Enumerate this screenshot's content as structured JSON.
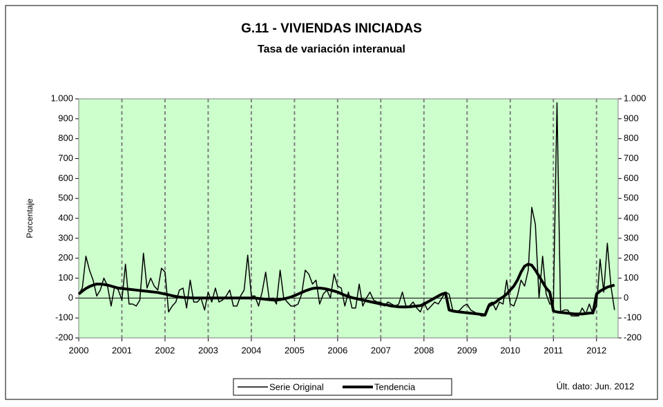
{
  "chart_data": {
    "type": "line",
    "title": "G.11 - VIVIENDAS INICIADAS",
    "subtitle": "Tasa de variación interanual",
    "y_label": "Porcentaje",
    "annotation": "Últ. dato: Jun. 2012",
    "background": "#ccffcc",
    "grid": true,
    "legend": "bottom",
    "xlim": [
      2000,
      2012.5
    ],
    "xticks": [
      2000,
      2001,
      2002,
      2003,
      2004,
      2005,
      2006,
      2007,
      2008,
      2009,
      2010,
      2011,
      2012
    ],
    "ylim": [
      -200,
      1000
    ],
    "yticks": [
      -200,
      -100,
      0,
      100,
      200,
      300,
      400,
      500,
      600,
      700,
      800,
      900,
      {
        "value": 1000,
        "label": "1.000"
      }
    ],
    "y2lim": [
      -200,
      1000
    ],
    "y2ticks": [
      -200,
      -100,
      0,
      100,
      200,
      300,
      400,
      500,
      600,
      700,
      800,
      900,
      {
        "value": 1000,
        "label": "1.000"
      }
    ],
    "x": [
      2000,
      2000.083,
      2000.167,
      2000.25,
      2000.333,
      2000.417,
      2000.5,
      2000.583,
      2000.667,
      2000.75,
      2000.833,
      2000.917,
      2001,
      2001.083,
      2001.167,
      2001.25,
      2001.333,
      2001.417,
      2001.5,
      2001.583,
      2001.667,
      2001.75,
      2001.833,
      2001.917,
      2002,
      2002.083,
      2002.167,
      2002.25,
      2002.333,
      2002.417,
      2002.5,
      2002.583,
      2002.667,
      2002.75,
      2002.833,
      2002.917,
      2003,
      2003.083,
      2003.167,
      2003.25,
      2003.333,
      2003.417,
      2003.5,
      2003.583,
      2003.667,
      2003.75,
      2003.833,
      2003.917,
      2004,
      2004.083,
      2004.167,
      2004.25,
      2004.333,
      2004.417,
      2004.5,
      2004.583,
      2004.667,
      2004.75,
      2004.833,
      2004.917,
      2005,
      2005.083,
      2005.167,
      2005.25,
      2005.333,
      2005.417,
      2005.5,
      2005.583,
      2005.667,
      2005.75,
      2005.833,
      2005.917,
      2006,
      2006.083,
      2006.167,
      2006.25,
      2006.333,
      2006.417,
      2006.5,
      2006.583,
      2006.667,
      2006.75,
      2006.833,
      2006.917,
      2007,
      2007.083,
      2007.167,
      2007.25,
      2007.333,
      2007.417,
      2007.5,
      2007.583,
      2007.667,
      2007.75,
      2007.833,
      2007.917,
      2008,
      2008.083,
      2008.167,
      2008.25,
      2008.333,
      2008.417,
      2008.5,
      2008.583,
      2008.667,
      2008.75,
      2008.833,
      2008.917,
      2009,
      2009.083,
      2009.167,
      2009.25,
      2009.333,
      2009.417,
      2009.5,
      2009.583,
      2009.667,
      2009.75,
      2009.833,
      2009.917,
      2010,
      2010.083,
      2010.167,
      2010.25,
      2010.333,
      2010.417,
      2010.5,
      2010.583,
      2010.667,
      2010.75,
      2010.833,
      2010.917,
      2011,
      2011.083,
      2011.167,
      2011.25,
      2011.333,
      2011.417,
      2011.5,
      2011.583,
      2011.667,
      2011.75,
      2011.833,
      2011.917,
      2012,
      2012.083,
      2012.167,
      2012.25,
      2012.333,
      2012.417
    ],
    "series": [
      {
        "name": "Serie Original",
        "color": "#000000",
        "width": 1.5,
        "values": [
          20,
          50,
          210,
          140,
          90,
          10,
          40,
          100,
          60,
          -40,
          60,
          40,
          -10,
          170,
          -30,
          -30,
          -40,
          -10,
          225,
          50,
          100,
          60,
          40,
          150,
          130,
          -70,
          -40,
          -20,
          40,
          50,
          -50,
          90,
          -20,
          -20,
          0,
          -60,
          30,
          -20,
          50,
          -20,
          -10,
          10,
          40,
          -40,
          -40,
          10,
          40,
          215,
          10,
          10,
          -40,
          30,
          130,
          -10,
          0,
          -30,
          140,
          0,
          -20,
          -40,
          -40,
          -30,
          20,
          140,
          120,
          70,
          90,
          -30,
          20,
          40,
          0,
          120,
          60,
          50,
          -40,
          30,
          -50,
          -50,
          70,
          -40,
          0,
          30,
          -10,
          -20,
          -20,
          -40,
          -20,
          -30,
          -40,
          -30,
          30,
          -40,
          -40,
          -20,
          -50,
          -70,
          -20,
          -60,
          -40,
          -20,
          -30,
          0,
          30,
          20,
          -60,
          -70,
          -60,
          -40,
          -30,
          -60,
          -70,
          -80,
          -90,
          -90,
          -30,
          -20,
          -60,
          -20,
          -30,
          90,
          -30,
          -40,
          10,
          90,
          60,
          140,
          455,
          370,
          0,
          210,
          20,
          -30,
          -30,
          980,
          -70,
          -60,
          -60,
          -90,
          -90,
          -90,
          -50,
          -80,
          -30,
          -80,
          -40,
          195,
          30,
          275,
          60,
          -60
        ]
      },
      {
        "name": "Tendencia",
        "color": "#000000",
        "width": 4,
        "values": [
          20,
          35,
          48,
          58,
          65,
          70,
          70,
          68,
          65,
          60,
          55,
          50,
          48,
          46,
          44,
          42,
          40,
          38,
          36,
          34,
          32,
          30,
          28,
          24,
          20,
          16,
          12,
          8,
          5,
          3,
          2,
          1,
          0,
          0,
          0,
          0,
          0,
          0,
          0,
          0,
          0,
          0,
          0,
          0,
          0,
          0,
          0,
          0,
          0,
          0,
          -2,
          -4,
          -6,
          -8,
          -10,
          -10,
          -8,
          -4,
          0,
          5,
          12,
          20,
          28,
          36,
          42,
          48,
          50,
          50,
          48,
          45,
          40,
          35,
          30,
          22,
          14,
          8,
          2,
          -2,
          -6,
          -10,
          -14,
          -18,
          -22,
          -26,
          -30,
          -33,
          -36,
          -40,
          -42,
          -44,
          -45,
          -45,
          -44,
          -42,
          -40,
          -38,
          -30,
          -20,
          -10,
          0,
          10,
          20,
          25,
          -60,
          -65,
          -68,
          -70,
          -72,
          -74,
          -76,
          -78,
          -80,
          -82,
          -85,
          -40,
          -30,
          -20,
          -5,
          5,
          20,
          40,
          60,
          90,
          130,
          160,
          170,
          165,
          140,
          110,
          80,
          50,
          30,
          -65,
          -70,
          -72,
          -74,
          -76,
          -78,
          -80,
          -80,
          -80,
          -78,
          -76,
          -74,
          20,
          35,
          45,
          55,
          60,
          65
        ]
      }
    ]
  }
}
